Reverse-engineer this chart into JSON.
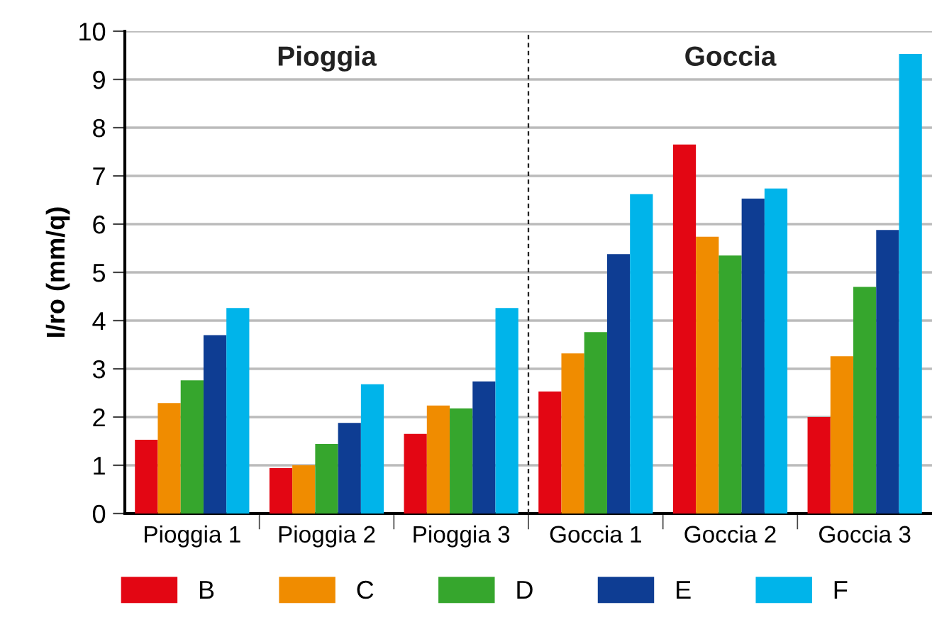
{
  "chart_data": {
    "type": "bar",
    "ylabel": "I/ro (mm/q)",
    "categories": [
      "Pioggia 1",
      "Pioggia 2",
      "Pioggia 3",
      "Goccia 1",
      "Goccia 2",
      "Goccia 3"
    ],
    "series": [
      {
        "name": "B",
        "color": "#e30613",
        "values": [
          1.53,
          0.94,
          1.65,
          2.53,
          7.65,
          2.0
        ]
      },
      {
        "name": "C",
        "color": "#f08c00",
        "values": [
          2.29,
          1.0,
          2.24,
          3.32,
          5.74,
          3.26
        ]
      },
      {
        "name": "D",
        "color": "#36a62d",
        "values": [
          2.76,
          1.44,
          2.18,
          3.76,
          5.35,
          4.7
        ]
      },
      {
        "name": "E",
        "color": "#0e3d93",
        "values": [
          3.7,
          1.88,
          2.74,
          5.38,
          6.53,
          5.88
        ]
      },
      {
        "name": "F",
        "color": "#00b4ea",
        "values": [
          4.26,
          2.68,
          4.26,
          6.62,
          6.74,
          9.53
        ]
      }
    ],
    "ylim": [
      0,
      10
    ],
    "yticks": [
      0,
      1,
      2,
      3,
      4,
      5,
      6,
      7,
      8,
      9,
      10
    ],
    "grid": "y",
    "legend": "bottom",
    "annotations": [
      "Pioggia",
      "Goccia"
    ]
  }
}
